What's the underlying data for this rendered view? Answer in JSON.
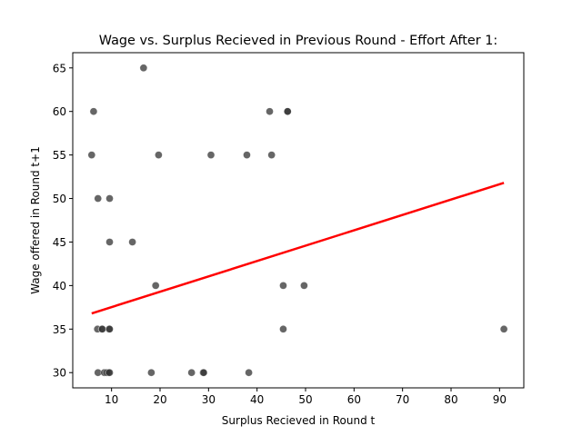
{
  "chart_data": {
    "type": "scatter",
    "title": "Wage vs. Surplus Recieved in Previous Round - Effort After 1:",
    "xlabel": "Surplus Recieved in Round t",
    "ylabel": "Wage offered in Round t+1",
    "xlim": [
      2.0,
      95.0
    ],
    "ylim": [
      28.25,
      66.75
    ],
    "xticks": [
      10,
      20,
      30,
      40,
      50,
      60,
      70,
      80,
      90
    ],
    "yticks": [
      30,
      35,
      40,
      45,
      50,
      55,
      60,
      65
    ],
    "grid": false,
    "series": [
      {
        "kind": "scatter",
        "color": "#333333",
        "opacity": 0.75,
        "points": [
          [
            16.6,
            65
          ],
          [
            6.3,
            60
          ],
          [
            42.6,
            60
          ],
          [
            46.3,
            60
          ],
          [
            46.3,
            60
          ],
          [
            5.9,
            55
          ],
          [
            19.7,
            55
          ],
          [
            30.5,
            55
          ],
          [
            37.9,
            55
          ],
          [
            43.0,
            55
          ],
          [
            7.2,
            50
          ],
          [
            9.6,
            50
          ],
          [
            9.6,
            45
          ],
          [
            14.3,
            45
          ],
          [
            19.1,
            40
          ],
          [
            45.4,
            40
          ],
          [
            49.7,
            40
          ],
          [
            7.1,
            35
          ],
          [
            8.0,
            35
          ],
          [
            8.1,
            35
          ],
          [
            9.5,
            35
          ],
          [
            9.6,
            35
          ],
          [
            45.4,
            35
          ],
          [
            90.9,
            35
          ],
          [
            7.2,
            30
          ],
          [
            8.5,
            30
          ],
          [
            9.0,
            30
          ],
          [
            9.4,
            30
          ],
          [
            9.6,
            30
          ],
          [
            18.2,
            30
          ],
          [
            26.5,
            30
          ],
          [
            28.9,
            30
          ],
          [
            29.0,
            30
          ],
          [
            38.3,
            30
          ]
        ]
      },
      {
        "kind": "line",
        "color": "#ff0000",
        "points": [
          [
            5.9,
            36.8
          ],
          [
            90.9,
            51.8
          ]
        ]
      }
    ]
  }
}
